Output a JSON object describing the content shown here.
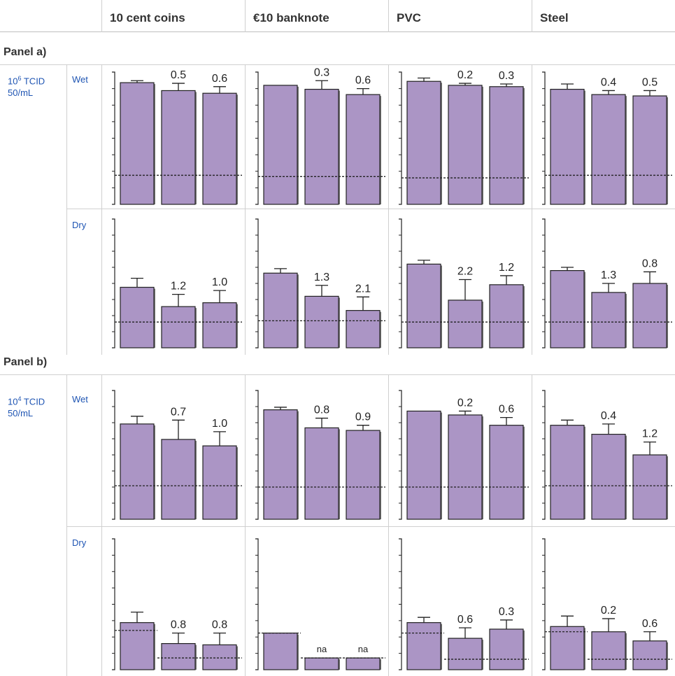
{
  "columns": [
    "10 cent coins",
    "€10 banknote",
    "PVC",
    "Steel"
  ],
  "colors": {
    "bar": "#ab95c5",
    "stroke": "#222222",
    "header_text": "#333333",
    "row_label": "#1f55b3"
  },
  "panels": [
    {
      "title": "Panel a)",
      "conc_base": "10",
      "conc_exp": "6",
      "conc_rest": " TCID",
      "conc_line2": "50/mL"
    },
    {
      "title": "Panel b)",
      "conc_base": "10",
      "conc_exp": "4",
      "conc_rest": " TCID",
      "conc_line2": "50/mL"
    }
  ],
  "conditions": [
    "Wet",
    "Dry"
  ],
  "chart_data": {
    "type": "bar",
    "ylim": [
      0,
      10
    ],
    "bars_per_cell": 3,
    "cells": [
      {
        "panel": 0,
        "condition": "Wet",
        "material": "10 cent coins",
        "values": [
          9.2,
          8.6,
          8.4
        ],
        "errors": [
          0.15,
          0.55,
          0.5
        ],
        "labels": [
          "",
          "0.5",
          "0.6"
        ],
        "detection_limits": [
          2.2
        ]
      },
      {
        "panel": 0,
        "condition": "Wet",
        "material": "€10 banknote",
        "values": [
          9.0,
          8.7,
          8.3
        ],
        "errors": [
          0,
          0.65,
          0.45
        ],
        "labels": [
          "",
          "0.3",
          "0.6"
        ],
        "detection_limits": [
          2.1
        ]
      },
      {
        "panel": 0,
        "condition": "Wet",
        "material": "PVC",
        "values": [
          9.3,
          9.0,
          8.9
        ],
        "errors": [
          0.25,
          0.15,
          0.2
        ],
        "labels": [
          "",
          "0.2",
          "0.3"
        ],
        "detection_limits": [
          2.0
        ]
      },
      {
        "panel": 0,
        "condition": "Wet",
        "material": "Steel",
        "values": [
          8.7,
          8.3,
          8.2
        ],
        "errors": [
          0.4,
          0.3,
          0.4
        ],
        "labels": [
          "",
          "0.4",
          "0.5"
        ],
        "detection_limits": [
          2.2
        ]
      },
      {
        "panel": 0,
        "condition": "Dry",
        "material": "10 cent coins",
        "values": [
          4.7,
          3.2,
          3.5
        ],
        "errors": [
          0.7,
          0.95,
          0.95
        ],
        "labels": [
          "",
          "1.2",
          "1.0"
        ],
        "detection_limits": [
          2.0
        ]
      },
      {
        "panel": 0,
        "condition": "Dry",
        "material": "€10 banknote",
        "values": [
          5.8,
          4.0,
          2.9
        ],
        "errors": [
          0.35,
          0.85,
          1.05
        ],
        "labels": [
          "",
          "1.3",
          "2.1"
        ],
        "detection_limits": [
          2.1
        ]
      },
      {
        "panel": 0,
        "condition": "Dry",
        "material": "PVC",
        "values": [
          6.5,
          3.7,
          4.9
        ],
        "errors": [
          0.3,
          1.6,
          0.7
        ],
        "labels": [
          "",
          "2.2",
          "1.2"
        ],
        "detection_limits": [
          2.0
        ]
      },
      {
        "panel": 0,
        "condition": "Dry",
        "material": "Steel",
        "values": [
          6.0,
          4.3,
          5.0
        ],
        "errors": [
          0.25,
          0.7,
          0.9
        ],
        "labels": [
          "",
          "1.3",
          "0.8"
        ],
        "detection_limits": [
          2.0
        ]
      },
      {
        "panel": 1,
        "condition": "Wet",
        "material": "10 cent coins",
        "values": [
          7.4,
          6.2,
          5.7
        ],
        "errors": [
          0.6,
          1.5,
          1.1
        ],
        "labels": [
          "",
          "0.7",
          "1.0"
        ],
        "detection_limits": [
          2.6
        ]
      },
      {
        "panel": 1,
        "condition": "Wet",
        "material": "€10 banknote",
        "values": [
          8.5,
          7.1,
          6.9
        ],
        "errors": [
          0.2,
          0.75,
          0.4
        ],
        "labels": [
          "",
          "0.8",
          "0.9"
        ],
        "detection_limits": [
          2.5
        ]
      },
      {
        "panel": 1,
        "condition": "Wet",
        "material": "PVC",
        "values": [
          8.4,
          8.1,
          7.3
        ],
        "errors": [
          0,
          0.3,
          0.6
        ],
        "labels": [
          "",
          "0.2",
          "0.6"
        ],
        "detection_limits": [
          2.5
        ]
      },
      {
        "panel": 1,
        "condition": "Wet",
        "material": "Steel",
        "values": [
          7.3,
          6.6,
          5.0
        ],
        "errors": [
          0.4,
          0.8,
          1.0
        ],
        "labels": [
          "",
          "0.4",
          "1.2"
        ],
        "detection_limits": [
          2.6
        ]
      },
      {
        "panel": 1,
        "condition": "Dry",
        "material": "10 cent coins",
        "values": [
          3.6,
          2.0,
          1.9
        ],
        "errors": [
          0.8,
          0.8,
          0.9
        ],
        "labels": [
          "",
          "0.8",
          "0.8"
        ],
        "detection_limits": [
          3.0,
          0.9
        ]
      },
      {
        "panel": 1,
        "condition": "Dry",
        "material": "€10 banknote",
        "values": [
          2.8,
          0.9,
          0.9
        ],
        "errors": [
          0,
          0,
          0
        ],
        "labels": [
          "",
          "na",
          "na"
        ],
        "detection_limits": [
          2.8,
          0.9
        ]
      },
      {
        "panel": 1,
        "condition": "Dry",
        "material": "PVC",
        "values": [
          3.6,
          2.4,
          3.1
        ],
        "errors": [
          0.4,
          0.8,
          0.7
        ],
        "labels": [
          "",
          "0.6",
          "0.3"
        ],
        "detection_limits": [
          2.8,
          0.8
        ]
      },
      {
        "panel": 1,
        "condition": "Dry",
        "material": "Steel",
        "values": [
          3.3,
          2.9,
          2.2
        ],
        "errors": [
          0.8,
          1.0,
          0.7
        ],
        "labels": [
          "",
          "0.2",
          "0.6"
        ],
        "detection_limits": [
          2.9,
          0.8
        ]
      }
    ]
  }
}
